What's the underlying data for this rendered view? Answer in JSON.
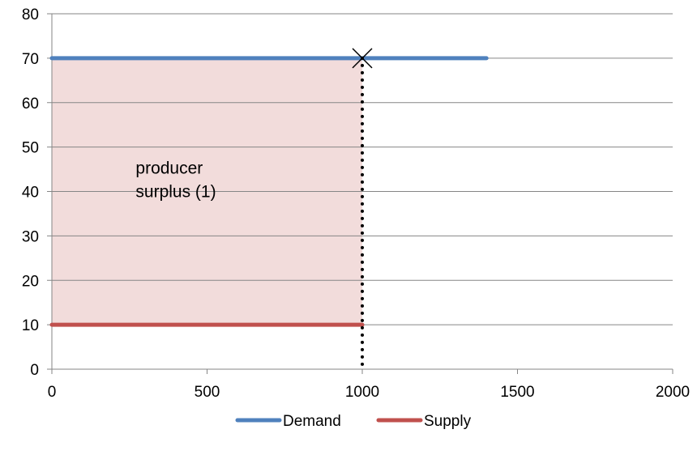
{
  "chart_data": {
    "type": "line",
    "title": "",
    "xlabel": "",
    "ylabel": "",
    "xlim": [
      0,
      2000
    ],
    "ylim": [
      0,
      80
    ],
    "x_ticks": [
      "0",
      "500",
      "1000",
      "1500",
      "2000"
    ],
    "y_ticks": [
      "0",
      "10",
      "20",
      "30",
      "40",
      "50",
      "60",
      "70",
      "80"
    ],
    "grid": "horizontal",
    "series": [
      {
        "name": "Demand",
        "color": "#4f81bd",
        "x": [
          0,
          1400
        ],
        "y": [
          70,
          70
        ]
      },
      {
        "name": "Supply",
        "color": "#c0504d",
        "x": [
          0,
          1000
        ],
        "y": [
          10,
          10
        ]
      }
    ],
    "shaded_region": {
      "x": [
        0,
        1000
      ],
      "y": [
        10,
        70
      ],
      "color": "#f2dcdb"
    },
    "dotted_line": {
      "x": 1000,
      "y": [
        0,
        70
      ],
      "color": "#000000"
    },
    "marker": {
      "x": 1000,
      "y": 70,
      "symbol": "x"
    },
    "annotation": {
      "line1": "producer",
      "line2": "surplus (1)",
      "x": 270,
      "y": 44
    },
    "legend": {
      "position": "bottom",
      "items": [
        "Demand",
        "Supply"
      ]
    }
  }
}
